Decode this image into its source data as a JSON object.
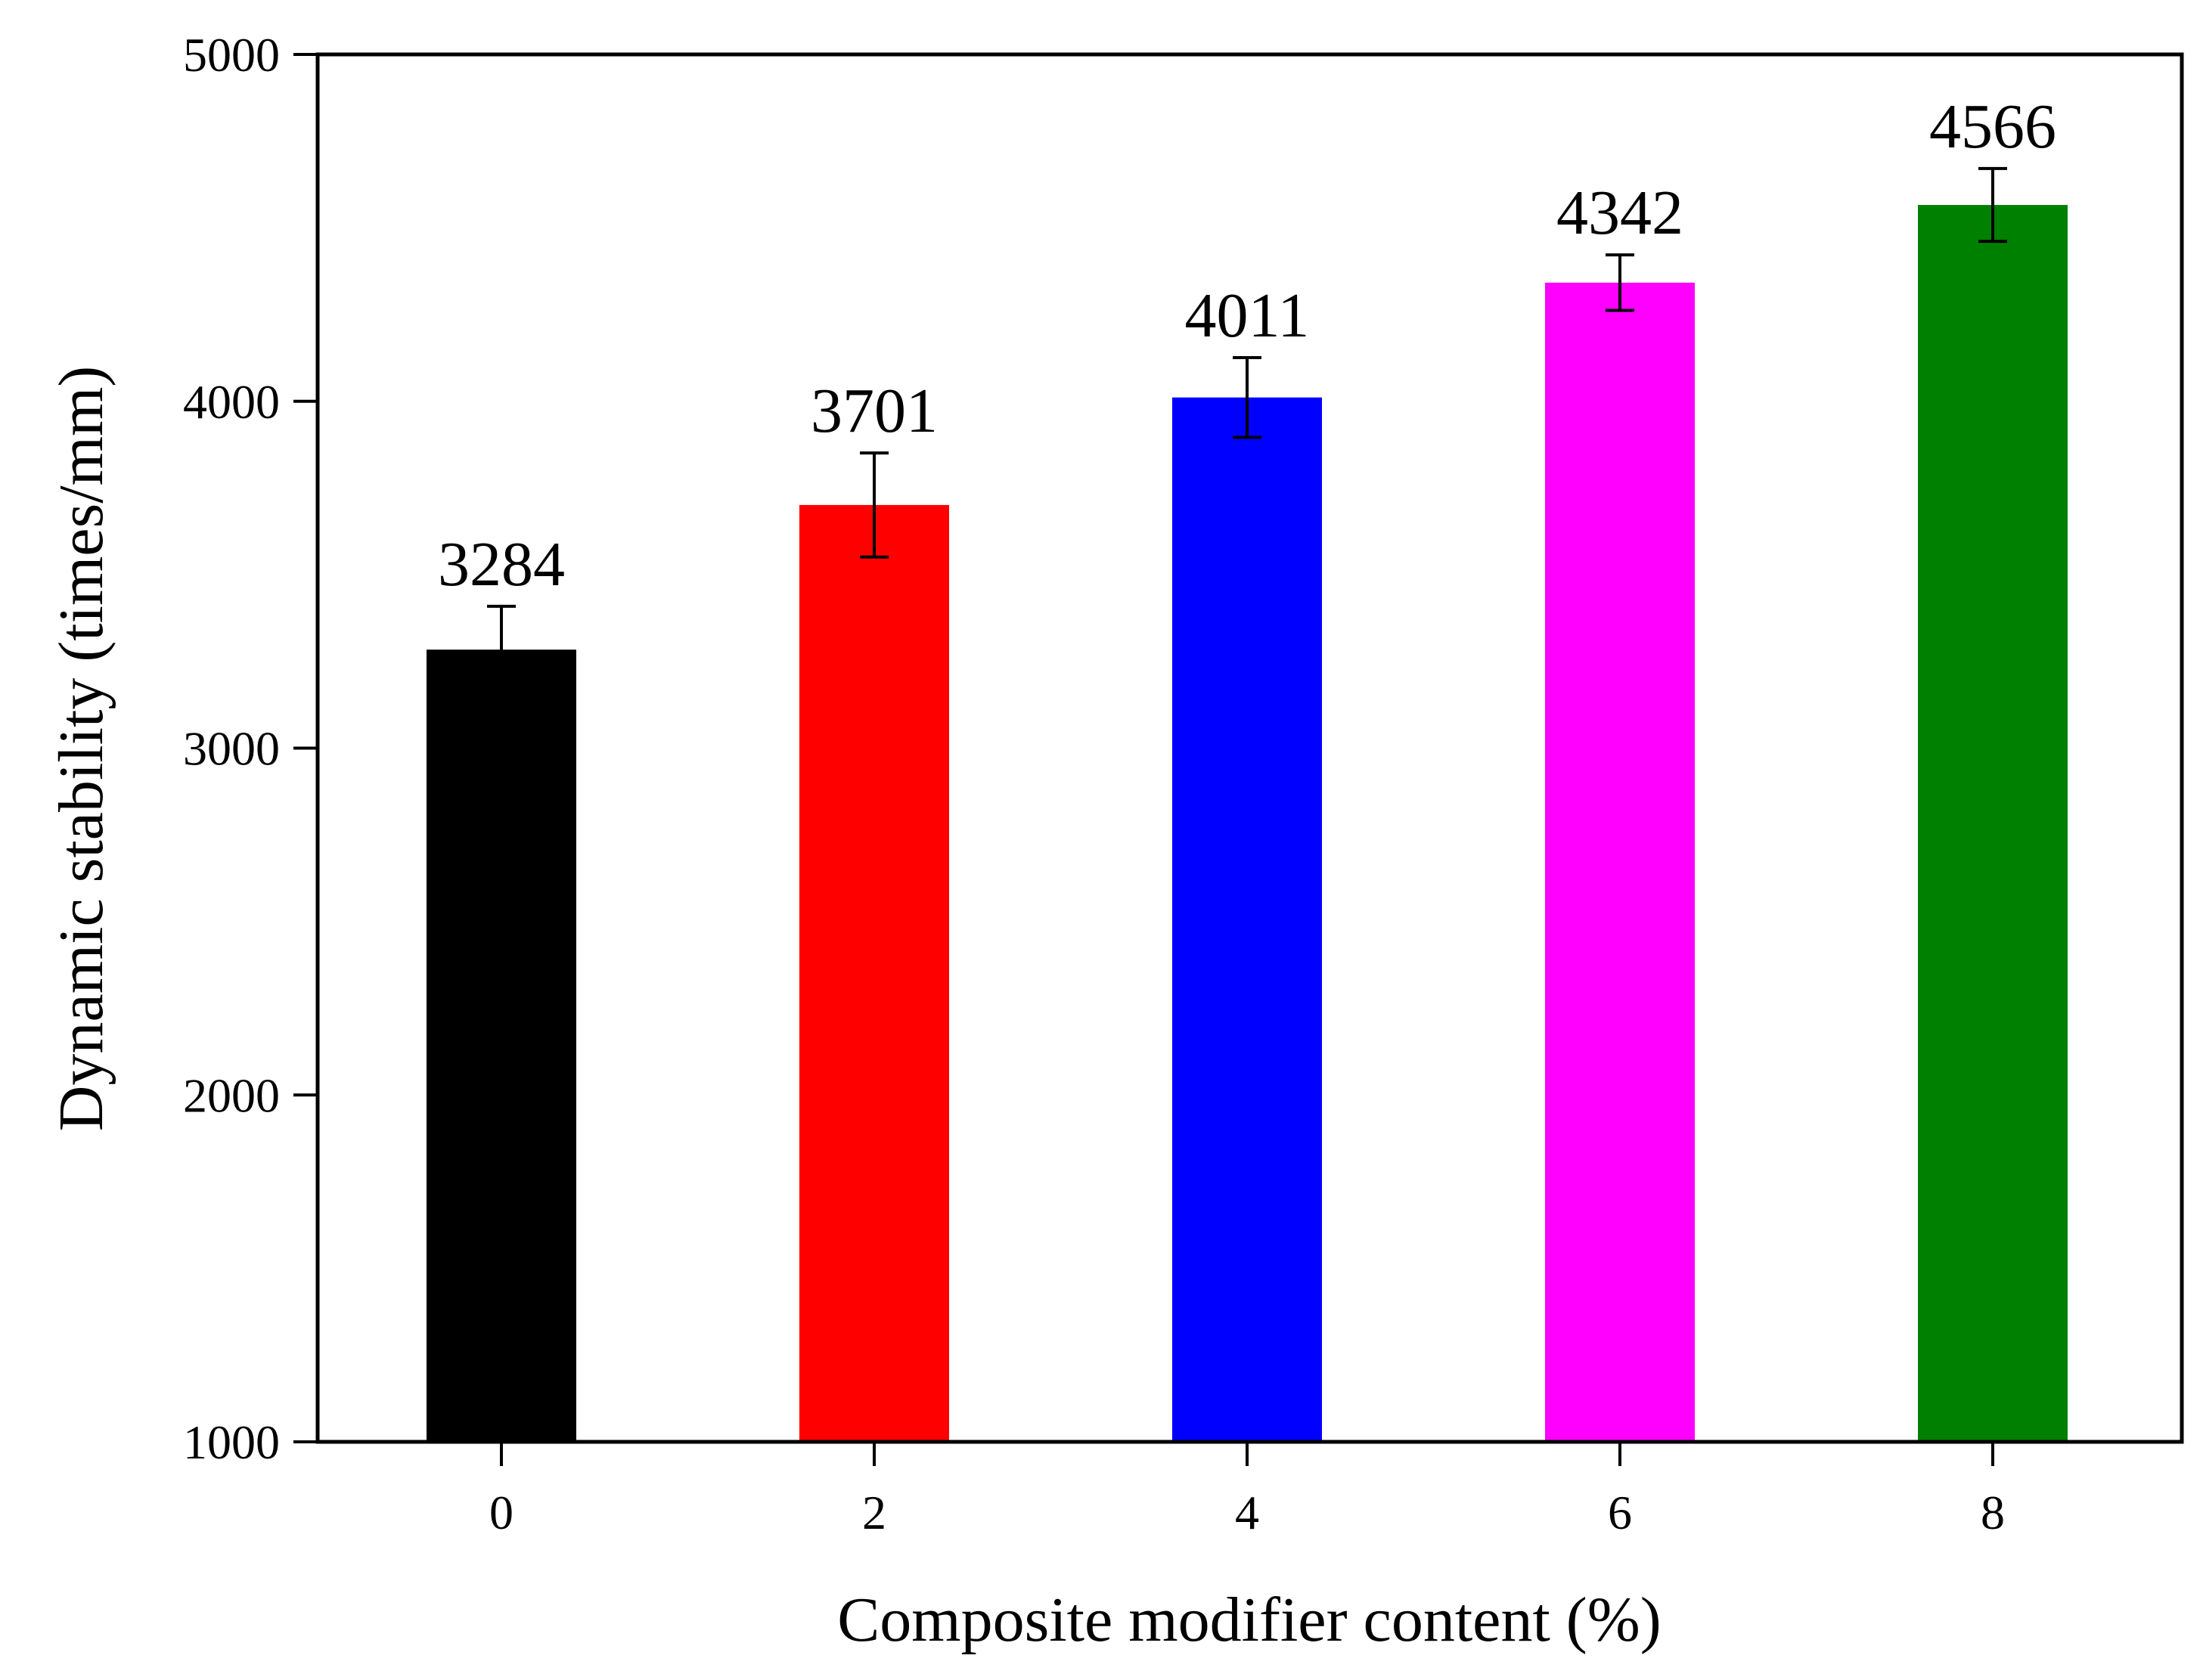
{
  "chart_data": {
    "type": "bar",
    "title": "",
    "xlabel": "Composite modifier content (%)",
    "ylabel": "Dynamic stability (times/mm)",
    "categories": [
      "0",
      "2",
      "4",
      "6",
      "8"
    ],
    "values": [
      3284,
      3701,
      4011,
      4342,
      4566
    ],
    "value_labels": [
      "3284",
      "3701",
      "4011",
      "4342",
      "4566"
    ],
    "errors": [
      125,
      150,
      115,
      80,
      105
    ],
    "bar_colors": [
      "#000000",
      "#ff0000",
      "#0000ff",
      "#ff00ff",
      "#008000"
    ],
    "ylim": [
      1000,
      5000
    ],
    "yticks": [
      1000,
      2000,
      3000,
      4000,
      5000
    ],
    "ytick_labels": [
      "1000",
      "2000",
      "3000",
      "4000",
      "5000"
    ],
    "grid": false,
    "legend": "none"
  }
}
